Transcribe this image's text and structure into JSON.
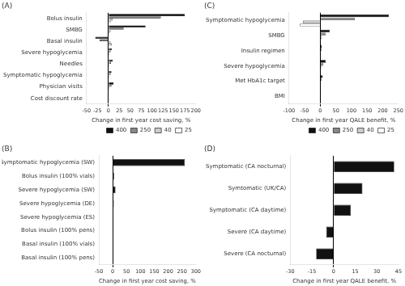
{
  "chart_data": [
    {
      "type": "bar",
      "orientation": "horizontal",
      "title": "(A)",
      "xlabel": "Change in first year cost saving, %",
      "categories": [
        "Bolus insulin",
        "SMBG",
        "Basal insulin",
        "Severe hypoglycemia",
        "Needles",
        "Symptomatic hypoglycemia",
        "Physician visits",
        "Cost discount rate"
      ],
      "series": [
        {
          "name": "400",
          "color": "#111111",
          "values": [
            175,
            85,
            -30,
            8,
            10,
            7,
            12,
            0
          ]
        },
        {
          "name": "250",
          "color": "#888888",
          "values": [
            120,
            35,
            -20,
            5,
            6,
            5,
            7,
            0
          ]
        },
        {
          "name": "40",
          "color": "#cccccc",
          "values": [
            10,
            5,
            5,
            2,
            2,
            2,
            2,
            0
          ]
        },
        {
          "name": "25",
          "color": "#ffffff",
          "values": [
            5,
            2,
            8,
            1,
            1,
            1,
            1,
            0
          ]
        }
      ],
      "xlim": [
        -50,
        200
      ],
      "xticks": [
        -50,
        -25,
        0,
        25,
        50,
        75,
        100,
        125,
        150,
        175,
        200
      ],
      "grid": false,
      "legend": "lower right"
    },
    {
      "type": "bar",
      "orientation": "horizontal",
      "title": "(B)",
      "xlabel": "Change in first year cost saving, %",
      "categories": [
        "Symptomatic hypoglycemia (SW)",
        "Bolus insulin (100% vials)",
        "Severe hypoglycemia (SW)",
        "Severe hypoglycemia (DE)",
        "Severe hypoglycemia (ES)",
        "Bolus insulin (100% pens)",
        "Basal insulin (100% vials)",
        "Basal insulin (100% pens)"
      ],
      "values": [
        260,
        5,
        10,
        4,
        3,
        3,
        0,
        0
      ],
      "color": "#111111",
      "xlim": [
        -50,
        300
      ],
      "xticks": [
        -50,
        0,
        50,
        100,
        150,
        200,
        250,
        300
      ],
      "grid": false
    },
    {
      "type": "bar",
      "orientation": "horizontal",
      "title": "(C)",
      "xlabel": "Change in first year QALE benefit, %",
      "categories": [
        "Symptomatic hypoglycemia",
        "SMBG",
        "Insulin regimen",
        "Severe hypoglycemia",
        "Met HbA1c target",
        "BMI"
      ],
      "series": [
        {
          "name": "400",
          "color": "#111111",
          "values": [
            220,
            30,
            5,
            18,
            8,
            2
          ]
        },
        {
          "name": "250",
          "color": "#888888",
          "values": [
            110,
            18,
            4,
            10,
            5,
            1
          ]
        },
        {
          "name": "40",
          "color": "#cccccc",
          "values": [
            -55,
            5,
            2,
            3,
            2,
            0
          ]
        },
        {
          "name": "25",
          "color": "#ffffff",
          "values": [
            -65,
            2,
            1,
            1,
            1,
            0
          ]
        }
      ],
      "xlim": [
        -100,
        250
      ],
      "xticks": [
        -100,
        -50,
        0,
        50,
        100,
        150,
        200,
        250
      ],
      "grid": false,
      "legend": "lower right"
    },
    {
      "type": "bar",
      "orientation": "horizontal",
      "title": "(D)",
      "xlabel": "Change in first year QALE benefit, %",
      "categories": [
        "Symptomatic (CA nocturnal)",
        "Symtomatic (UK/CA)",
        "Symptomatic (CA daytime)",
        "Severe (CA daytime)",
        "Severe (CA nocturnal)"
      ],
      "values": [
        42,
        20,
        12,
        -5,
        -12
      ],
      "color": "#111111",
      "xlim": [
        -30,
        45
      ],
      "xticks": [
        -30,
        -15,
        0,
        15,
        30,
        45
      ],
      "grid": false
    }
  ]
}
